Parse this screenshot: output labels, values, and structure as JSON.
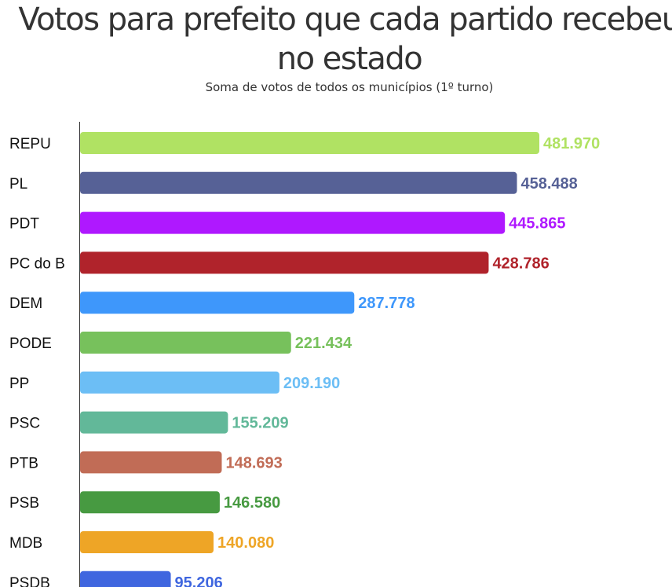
{
  "chart_data": {
    "type": "bar",
    "orientation": "horizontal",
    "title": "Votos para prefeito que cada partido recebeu no estado",
    "subtitle": "Soma de votos de todos os municípios (1º turno)",
    "categories": [
      "REPU",
      "PL",
      "PDT",
      "PC do B",
      "DEM",
      "PODE",
      "PP",
      "PSC",
      "PTB",
      "PSB",
      "MDB",
      "PSDB"
    ],
    "values": [
      481970,
      458488,
      445865,
      428786,
      287778,
      221434,
      209190,
      155209,
      148693,
      146580,
      140080,
      95206
    ],
    "value_labels": [
      "481.970",
      "458.488",
      "445.865",
      "428.786",
      "287.778",
      "221.434",
      "209.190",
      "155.209",
      "148.693",
      "146.580",
      "140.080",
      "95.206"
    ],
    "colors": [
      "#b0e263",
      "#566196",
      "#af18ff",
      "#b0232b",
      "#3e97fb",
      "#77c15c",
      "#6cbef5",
      "#62b899",
      "#c16c56",
      "#479a41",
      "#eea526",
      "#3f66df"
    ],
    "xlim": [
      0,
      481970
    ],
    "grid": false,
    "legend": "none"
  }
}
